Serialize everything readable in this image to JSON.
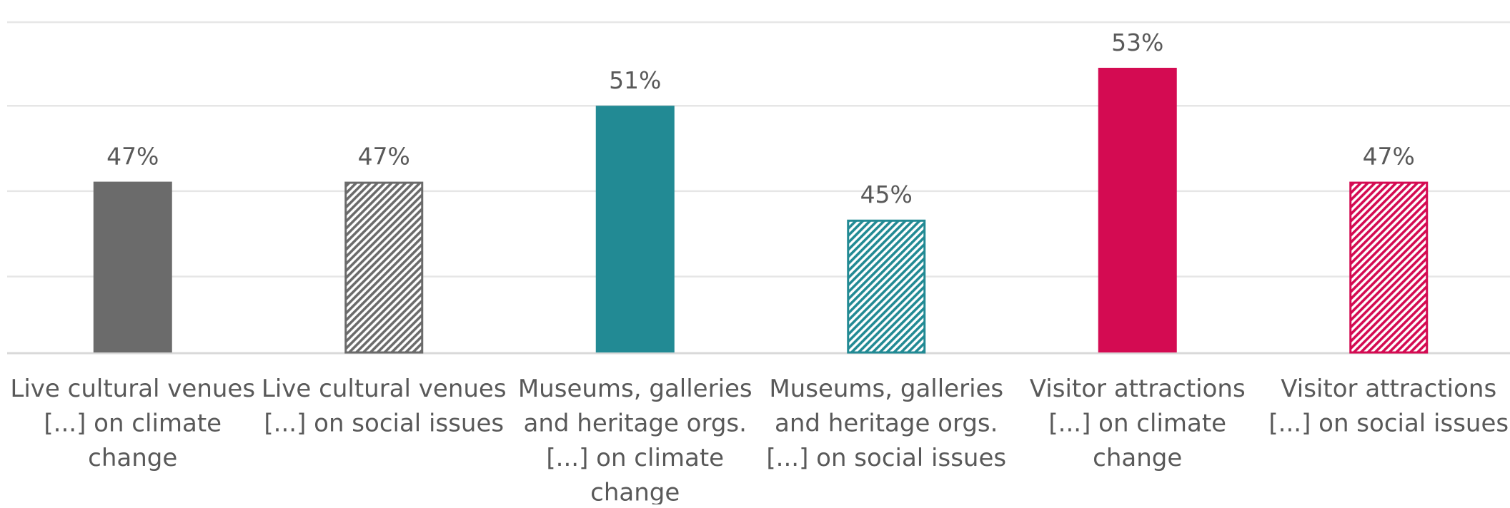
{
  "chart_data": {
    "type": "bar",
    "categories": [
      [
        "Live cultural venues",
        "[...] on climate",
        "change"
      ],
      [
        "Live cultural venues",
        "[...] on social issues"
      ],
      [
        "Museums, galleries",
        "and heritage orgs.",
        "[...] on climate",
        "change"
      ],
      [
        "Museums, galleries",
        "and heritage orgs.",
        "[...] on social issues"
      ],
      [
        "Visitor attractions",
        "[...] on climate",
        "change"
      ],
      [
        "Visitor attractions",
        "[...] on social issues"
      ]
    ],
    "values": [
      47,
      47,
      51,
      45,
      53,
      47
    ],
    "data_labels": [
      "47%",
      "47%",
      "51%",
      "45%",
      "53%",
      "47%"
    ],
    "bar_styles": [
      {
        "fill": "solid",
        "color": "#6b6b6b"
      },
      {
        "fill": "hatched",
        "color": "#6b6b6b"
      },
      {
        "fill": "solid",
        "color": "#228a94"
      },
      {
        "fill": "hatched",
        "color": "#228a94"
      },
      {
        "fill": "solid",
        "color": "#d40b52"
      },
      {
        "fill": "hatched",
        "color": "#d40b52"
      }
    ],
    "ylim": [
      38,
      56
    ],
    "grid": true,
    "title": "",
    "xlabel": "",
    "ylabel": ""
  }
}
